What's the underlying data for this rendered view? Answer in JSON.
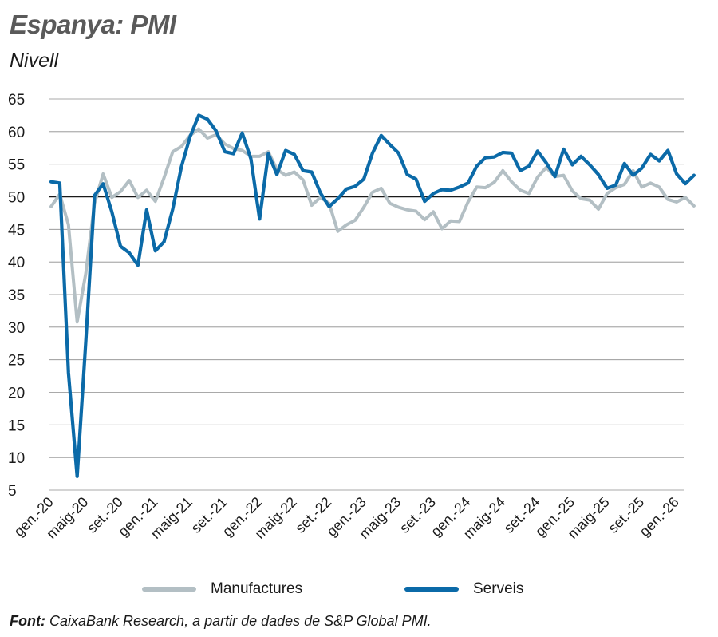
{
  "header": {
    "title": "Espanya: PMI",
    "subtitle": "Nivell"
  },
  "legend": [
    {
      "label": "Manufactures",
      "color": "#b3bfc4"
    },
    {
      "label": "Serveis",
      "color": "#0b6aa8"
    }
  ],
  "source": {
    "prefix": "Font:",
    "text": " CaixaBank Research, a partir de dades de S&P Global PMI."
  },
  "chart_data": {
    "type": "line",
    "title": "Espanya: PMI",
    "subtitle": "Nivell",
    "ylim": [
      5,
      65
    ],
    "yticks": [
      5,
      10,
      15,
      20,
      25,
      30,
      35,
      40,
      45,
      50,
      55,
      60,
      65
    ],
    "reference_line": 50,
    "grid": true,
    "legend_position": "bottom",
    "xtick_labels": [
      "gen.-20",
      "maig-20",
      "set.-20",
      "gen.-21",
      "maig-21",
      "set.-21",
      "gen.-22",
      "maig-22",
      "set.-22",
      "gen.-23",
      "maig-23",
      "set.-23",
      "gen.-24",
      "maig-24",
      "set.-24",
      "gen.-25",
      "maig-25",
      "set.-25",
      "gen.-26"
    ],
    "x_start": "gen.-20",
    "x_frequency": "monthly",
    "series": [
      {
        "name": "Manufactures",
        "color": "#b3bfc4",
        "values": [
          48.5,
          50.4,
          45.7,
          30.8,
          38.3,
          49.0,
          53.5,
          49.9,
          50.8,
          52.5,
          49.9,
          51.0,
          49.3,
          52.9,
          56.9,
          57.7,
          59.4,
          60.4,
          59.0,
          59.5,
          58.1,
          57.4,
          57.1,
          56.2,
          56.2,
          56.9,
          54.2,
          53.3,
          53.8,
          52.6,
          48.7,
          49.9,
          49.0,
          44.7,
          45.7,
          46.4,
          48.4,
          50.7,
          51.3,
          49.0,
          48.4,
          48.0,
          47.8,
          46.5,
          47.7,
          45.1,
          46.3,
          46.2,
          49.2,
          51.5,
          51.4,
          52.2,
          54.0,
          52.3,
          51.0,
          50.5,
          53.0,
          54.5,
          53.1,
          53.3,
          50.9,
          49.7,
          49.5,
          48.1,
          50.5,
          51.4,
          51.9,
          54.0,
          51.5,
          52.1,
          51.5,
          49.6,
          49.2,
          49.9,
          48.6
        ]
      },
      {
        "name": "Serveis",
        "color": "#0b6aa8",
        "values": [
          52.3,
          52.1,
          23.0,
          7.1,
          27.9,
          50.2,
          52.0,
          47.7,
          42.4,
          41.4,
          39.5,
          48.0,
          41.7,
          43.1,
          48.1,
          54.6,
          59.2,
          62.5,
          61.9,
          60.1,
          56.9,
          56.6,
          59.8,
          55.8,
          46.6,
          56.6,
          53.4,
          57.1,
          56.5,
          54.0,
          53.8,
          50.6,
          48.5,
          49.7,
          51.2,
          51.6,
          52.7,
          56.7,
          59.4,
          58.0,
          56.7,
          53.4,
          52.7,
          49.3,
          50.5,
          51.1,
          51.0,
          51.5,
          52.1,
          54.7,
          56.0,
          56.1,
          56.8,
          56.7,
          54.0,
          54.7,
          57.0,
          55.2,
          53.1,
          57.3,
          54.9,
          56.2,
          54.9,
          53.4,
          51.3,
          51.8,
          55.1,
          53.3,
          54.4,
          56.5,
          55.5,
          57.1,
          53.5,
          52.0,
          53.3
        ]
      }
    ]
  }
}
